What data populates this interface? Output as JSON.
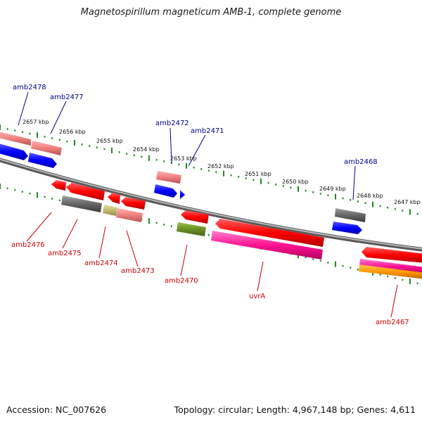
{
  "title": "Magnetospirillum magneticum AMB-1, complete genome",
  "footer": {
    "accession": "Accession: NC_007626",
    "summary": "Topology: circular; Length: 4,967,148 bp; Genes: 4,611"
  },
  "colors": {
    "upper_label": "#00008b",
    "lower_label": "#cc0000",
    "tick": "#1e8a1e",
    "backbone": "#888888"
  },
  "scale_labels": [
    "2657 kbp",
    "2656 kbp",
    "2655 kbp",
    "2654 kbp",
    "2653 kbp",
    "2652 kbp",
    "2651 kbp",
    "2650 kbp",
    "2649 kbp",
    "2648 kbp",
    "2647 kbp"
  ],
  "upper_gene_labels": [
    "amb2478",
    "amb2477",
    "amb2472",
    "amb2471",
    "amb2468"
  ],
  "lower_gene_labels": [
    "amb2476",
    "amb2475",
    "amb2474",
    "amb2473",
    "amb2470",
    "uvrA",
    "amb2467"
  ],
  "gene_colors": [
    "salmon",
    "blue",
    "red",
    "gray",
    "olive-yellow",
    "olive-green",
    "magenta",
    "orange"
  ]
}
